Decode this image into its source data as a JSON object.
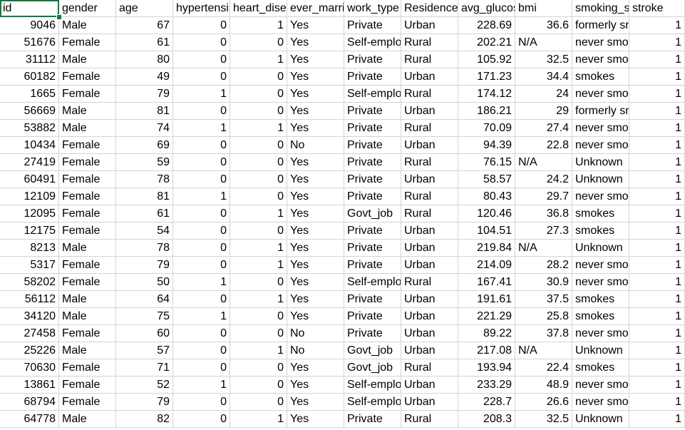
{
  "headers": [
    "id",
    "gender",
    "age",
    "hypertensi",
    "heart_dise",
    "ever_marri",
    "work_type",
    "Residence",
    "avg_glucos",
    "bmi",
    "smoking_s",
    "stroke"
  ],
  "rows": [
    [
      "9046",
      "Male",
      "67",
      "0",
      "1",
      "Yes",
      "Private",
      "Urban",
      "228.69",
      "36.6",
      "formerly sm",
      "1"
    ],
    [
      "51676",
      "Female",
      "61",
      "0",
      "0",
      "Yes",
      "Self-emplo",
      "Rural",
      "202.21",
      "N/A",
      "never smok",
      "1"
    ],
    [
      "31112",
      "Male",
      "80",
      "0",
      "1",
      "Yes",
      "Private",
      "Rural",
      "105.92",
      "32.5",
      "never smok",
      "1"
    ],
    [
      "60182",
      "Female",
      "49",
      "0",
      "0",
      "Yes",
      "Private",
      "Urban",
      "171.23",
      "34.4",
      "smokes",
      "1"
    ],
    [
      "1665",
      "Female",
      "79",
      "1",
      "0",
      "Yes",
      "Self-emplo",
      "Rural",
      "174.12",
      "24",
      "never smok",
      "1"
    ],
    [
      "56669",
      "Male",
      "81",
      "0",
      "0",
      "Yes",
      "Private",
      "Urban",
      "186.21",
      "29",
      "formerly sm",
      "1"
    ],
    [
      "53882",
      "Male",
      "74",
      "1",
      "1",
      "Yes",
      "Private",
      "Rural",
      "70.09",
      "27.4",
      "never smok",
      "1"
    ],
    [
      "10434",
      "Female",
      "69",
      "0",
      "0",
      "No",
      "Private",
      "Urban",
      "94.39",
      "22.8",
      "never smok",
      "1"
    ],
    [
      "27419",
      "Female",
      "59",
      "0",
      "0",
      "Yes",
      "Private",
      "Rural",
      "76.15",
      "N/A",
      "Unknown",
      "1"
    ],
    [
      "60491",
      "Female",
      "78",
      "0",
      "0",
      "Yes",
      "Private",
      "Urban",
      "58.57",
      "24.2",
      "Unknown",
      "1"
    ],
    [
      "12109",
      "Female",
      "81",
      "1",
      "0",
      "Yes",
      "Private",
      "Rural",
      "80.43",
      "29.7",
      "never smok",
      "1"
    ],
    [
      "12095",
      "Female",
      "61",
      "0",
      "1",
      "Yes",
      "Govt_job",
      "Rural",
      "120.46",
      "36.8",
      "smokes",
      "1"
    ],
    [
      "12175",
      "Female",
      "54",
      "0",
      "0",
      "Yes",
      "Private",
      "Urban",
      "104.51",
      "27.3",
      "smokes",
      "1"
    ],
    [
      "8213",
      "Male",
      "78",
      "0",
      "1",
      "Yes",
      "Private",
      "Urban",
      "219.84",
      "N/A",
      "Unknown",
      "1"
    ],
    [
      "5317",
      "Female",
      "79",
      "0",
      "1",
      "Yes",
      "Private",
      "Urban",
      "214.09",
      "28.2",
      "never smok",
      "1"
    ],
    [
      "58202",
      "Female",
      "50",
      "1",
      "0",
      "Yes",
      "Self-emplo",
      "Rural",
      "167.41",
      "30.9",
      "never smok",
      "1"
    ],
    [
      "56112",
      "Male",
      "64",
      "0",
      "1",
      "Yes",
      "Private",
      "Urban",
      "191.61",
      "37.5",
      "smokes",
      "1"
    ],
    [
      "34120",
      "Male",
      "75",
      "1",
      "0",
      "Yes",
      "Private",
      "Urban",
      "221.29",
      "25.8",
      "smokes",
      "1"
    ],
    [
      "27458",
      "Female",
      "60",
      "0",
      "0",
      "No",
      "Private",
      "Urban",
      "89.22",
      "37.8",
      "never smok",
      "1"
    ],
    [
      "25226",
      "Male",
      "57",
      "0",
      "1",
      "No",
      "Govt_job",
      "Urban",
      "217.08",
      "N/A",
      "Unknown",
      "1"
    ],
    [
      "70630",
      "Female",
      "71",
      "0",
      "0",
      "Yes",
      "Govt_job",
      "Rural",
      "193.94",
      "22.4",
      "smokes",
      "1"
    ],
    [
      "13861",
      "Female",
      "52",
      "1",
      "0",
      "Yes",
      "Self-emplo",
      "Urban",
      "233.29",
      "48.9",
      "never smok",
      "1"
    ],
    [
      "68794",
      "Female",
      "79",
      "0",
      "0",
      "Yes",
      "Self-emplo",
      "Urban",
      "228.7",
      "26.6",
      "never smok",
      "1"
    ],
    [
      "64778",
      "Male",
      "82",
      "0",
      "1",
      "Yes",
      "Private",
      "Rural",
      "208.3",
      "32.5",
      "Unknown",
      "1"
    ]
  ],
  "numeric_columns": [
    0,
    2,
    3,
    4,
    8,
    9,
    11
  ]
}
